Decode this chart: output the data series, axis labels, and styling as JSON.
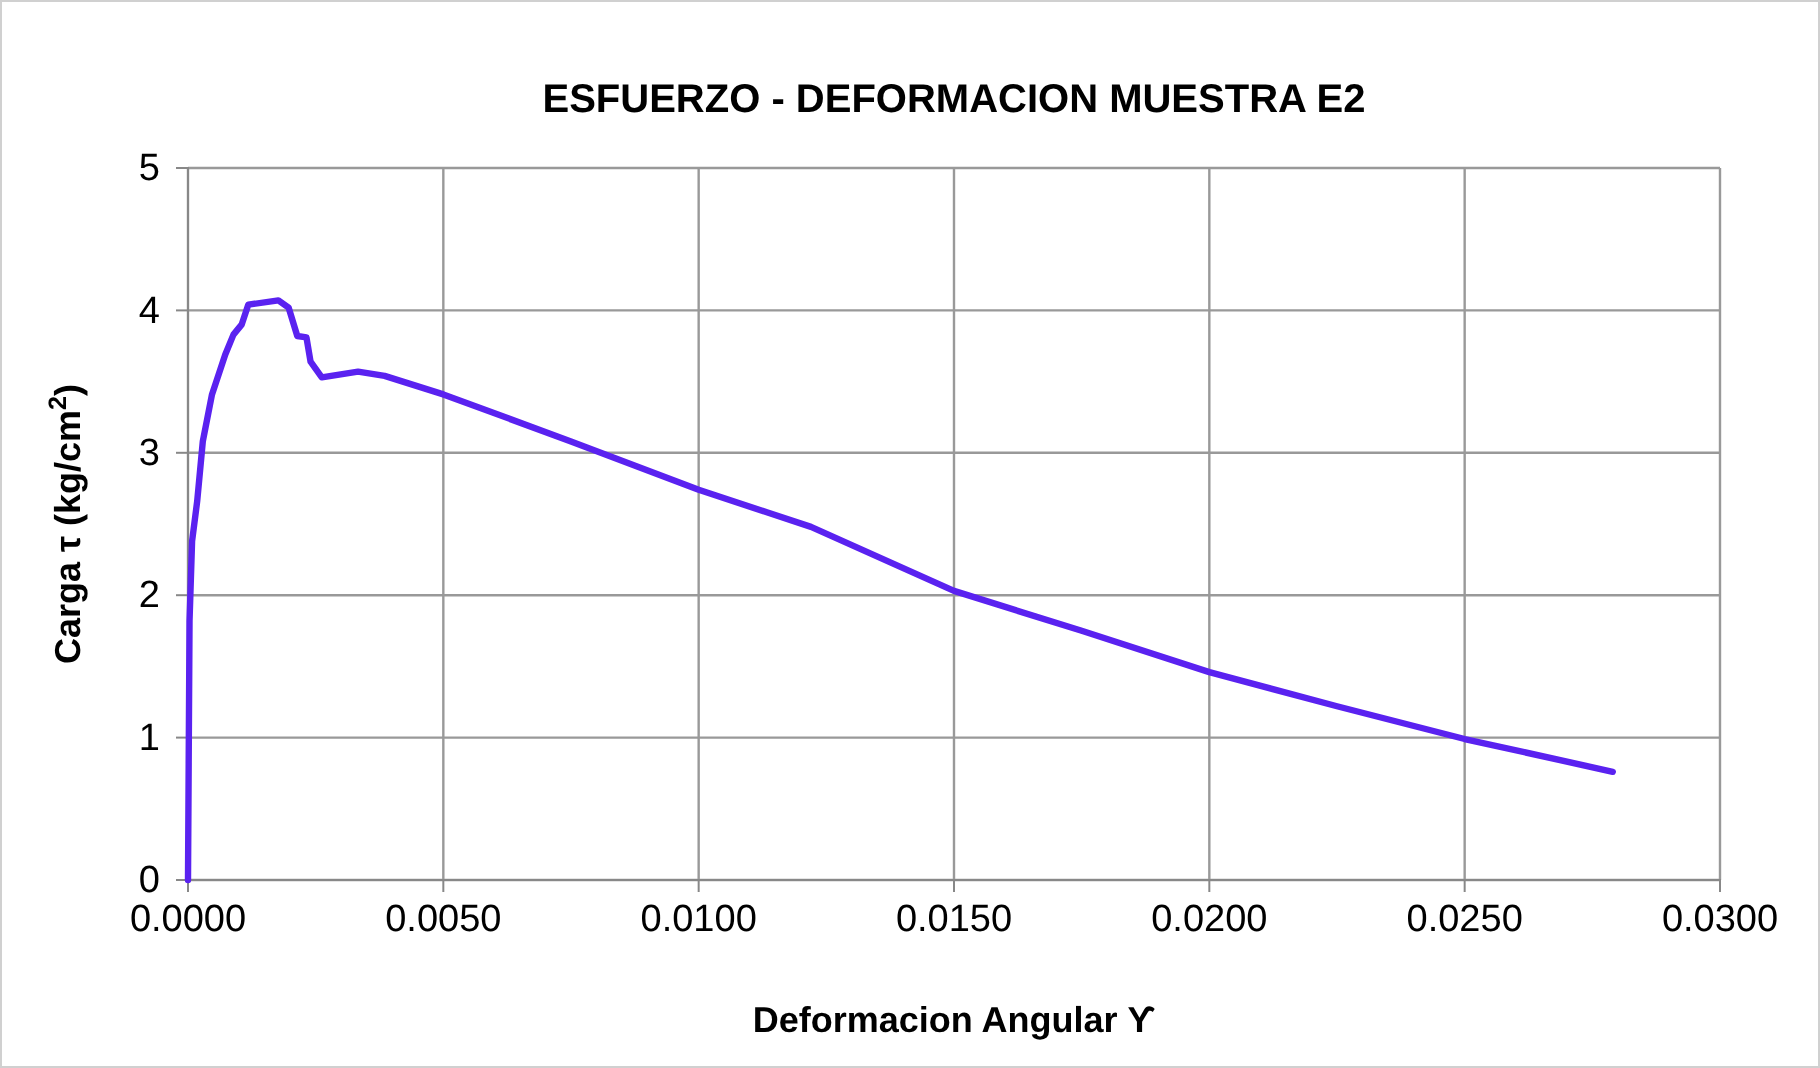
{
  "chart_data": {
    "type": "line",
    "title": "ESFUERZO - DEFORMACION MUESTRA E2",
    "xlabel": "Deformacion Angular ϒ",
    "ylabel": "Carga τ (kg/cm$^{2}$)",
    "xlim": [
      0,
      0.03
    ],
    "ylim": [
      0,
      5
    ],
    "xticks": [
      {
        "value": 0,
        "label": "0.0000"
      },
      {
        "value": 0.005,
        "label": "0.0050"
      },
      {
        "value": 0.01,
        "label": "0.0100"
      },
      {
        "value": 0.015,
        "label": "0.0150"
      },
      {
        "value": 0.02,
        "label": "0.0200"
      },
      {
        "value": 0.025,
        "label": "0.0250"
      },
      {
        "value": 0.03,
        "label": "0.0300"
      }
    ],
    "yticks": [
      0,
      1,
      2,
      3,
      4,
      5
    ],
    "grid": true,
    "marker": "none",
    "line_style": "solid",
    "series": [
      {
        "color": "#5a22f0",
        "x": [
          0,
          3e-05,
          8e-05,
          0.00018,
          0.00029,
          0.00047,
          0.00073,
          0.00089,
          0.00105,
          0.00118,
          0.00177,
          0.00197,
          0.00214,
          0.00232,
          0.0024,
          0.00262,
          0.00333,
          0.00385,
          0.005,
          0.0075,
          0.01,
          0.0122,
          0.015,
          0.0175,
          0.02,
          0.0225,
          0.025,
          0.0279
        ],
        "values": [
          0,
          1.82,
          2.38,
          2.66,
          3.08,
          3.41,
          3.69,
          3.83,
          3.9,
          4.04,
          4.07,
          4.02,
          3.82,
          3.81,
          3.64,
          3.53,
          3.57,
          3.54,
          3.41,
          3.08,
          2.74,
          2.48,
          2.03,
          1.75,
          1.46,
          1.22,
          0.99,
          0.76
        ]
      }
    ]
  }
}
